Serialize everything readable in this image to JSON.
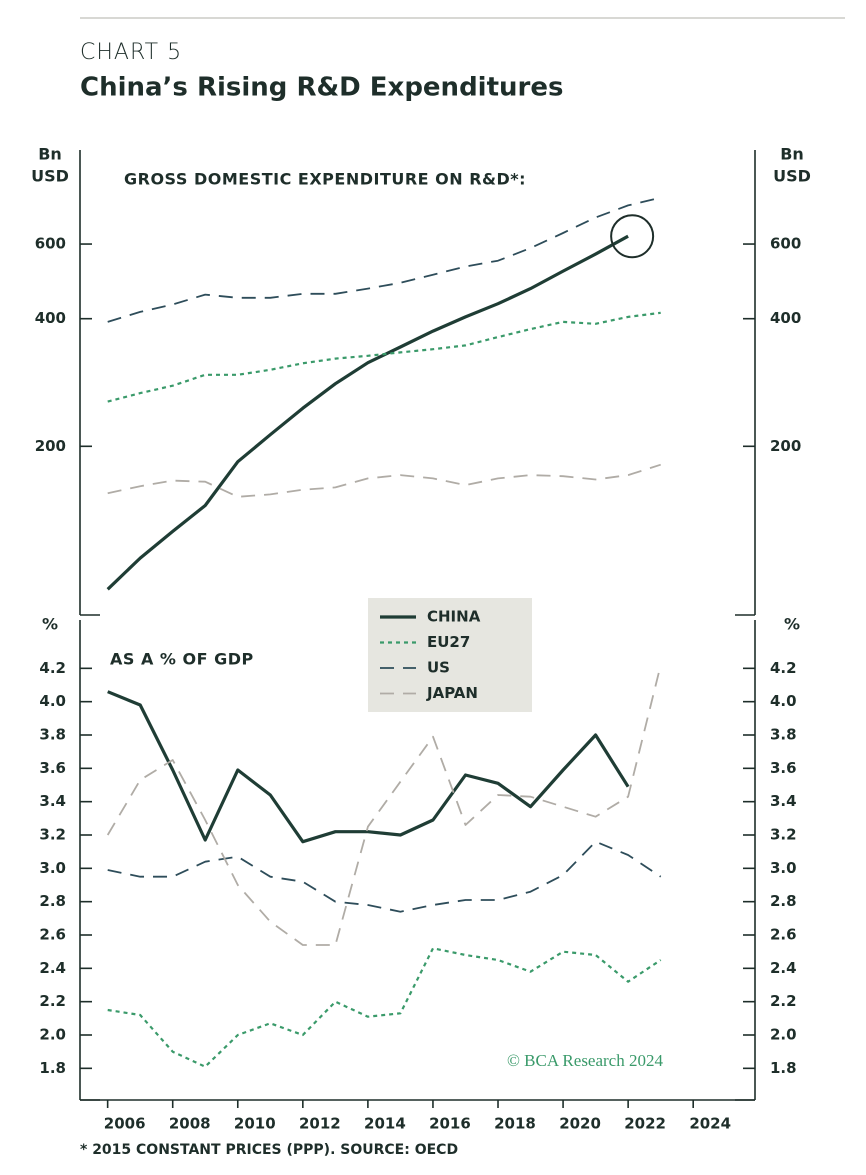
{
  "header": {
    "label": "CHART 5",
    "title": "China’s Rising R&D Expenditures"
  },
  "chart_data": [
    {
      "type": "line",
      "subtitle": "GROSS DOMESTIC EXPENDITURE ON R&D*:",
      "y_label": [
        "Bn",
        "USD"
      ],
      "log_y": true,
      "x": [
        2006,
        2007,
        2008,
        2009,
        2010,
        2011,
        2012,
        2013,
        2014,
        2015,
        2016,
        2017,
        2018,
        2019,
        2020,
        2021,
        2022,
        2023
      ],
      "xlim": [
        2005.15,
        2025.9
      ],
      "ylim": [
        80,
        1000
      ],
      "yticks": [
        200,
        400,
        600
      ],
      "series": [
        {
          "name": "CHINA",
          "color": "#1f3d35",
          "style": "solid",
          "values": [
            92,
            109,
            126,
            145,
            184,
            213,
            246,
            281,
            315,
            343,
            374,
            404,
            434,
            471,
            518,
            568,
            626,
            null
          ]
        },
        {
          "name": "EU27",
          "color": "#3a9a6a",
          "style": "dotted",
          "values": [
            255,
            267,
            278,
            295,
            295,
            303,
            314,
            322,
            327,
            333,
            339,
            346,
            362,
            378,
            393,
            389,
            404,
            413
          ]
        },
        {
          "name": "US",
          "color": "#2e4d5a",
          "style": "dashed",
          "values": [
            393,
            415,
            432,
            456,
            448,
            448,
            458,
            458,
            471,
            486,
            508,
            531,
            548,
            587,
            637,
            693,
            740,
            772
          ]
        },
        {
          "name": "JAPAN",
          "color": "#b0aca6",
          "style": "dashed",
          "values": [
            155,
            161,
            166,
            165,
            152,
            154,
            158,
            160,
            168,
            171,
            168,
            162,
            168,
            171,
            170,
            167,
            171,
            181
          ]
        }
      ]
    },
    {
      "type": "line",
      "subtitle": "AS A % OF GDP",
      "y_label": [
        "%"
      ],
      "x": [
        2006,
        2007,
        2008,
        2009,
        2010,
        2011,
        2012,
        2013,
        2014,
        2015,
        2016,
        2017,
        2018,
        2019,
        2020,
        2021,
        2022,
        2023
      ],
      "xlim": [
        2005.15,
        2025.9
      ],
      "xticks": [
        2006,
        2008,
        2010,
        2012,
        2014,
        2016,
        2018,
        2020,
        2022,
        2024
      ],
      "ylim": [
        1.61,
        4.49
      ],
      "yticks": [
        1.8,
        {
          "value": 2,
          "label": "2.0"
        },
        2.2,
        2.4,
        2.6,
        2.8,
        {
          "value": 3,
          "label": "3.0"
        },
        3.2,
        3.4,
        3.6,
        3.8,
        {
          "value": 4,
          "label": "4.0"
        },
        4.2
      ],
      "series": [
        {
          "color": "#1f3d35",
          "style": "solid",
          "values": [
            4.06,
            3.98,
            3.59,
            3.17,
            3.59,
            3.44,
            3.16,
            3.22,
            3.22,
            3.2,
            3.29,
            3.56,
            3.51,
            3.37,
            3.59,
            3.8,
            3.49,
            null
          ]
        },
        {
          "color": "#3a9a6a",
          "style": "dotted",
          "values": [
            2.15,
            2.12,
            1.9,
            1.81,
            2.0,
            2.07,
            2.0,
            2.2,
            2.11,
            2.13,
            2.52,
            2.48,
            2.45,
            2.38,
            2.5,
            2.48,
            2.32,
            2.45
          ]
        },
        {
          "color": "#2e4d5a",
          "style": "dashed",
          "values": [
            2.99,
            2.95,
            2.95,
            3.04,
            3.07,
            2.95,
            2.92,
            2.8,
            2.78,
            2.74,
            2.78,
            2.81,
            2.81,
            2.86,
            2.96,
            3.16,
            3.08,
            2.95
          ]
        },
        {
          "color": "#b0aca6",
          "style": "dashed",
          "values": [
            3.2,
            3.53,
            3.65,
            3.29,
            2.9,
            2.68,
            2.54,
            2.54,
            3.25,
            3.52,
            3.79,
            3.26,
            3.44,
            3.43,
            3.37,
            3.31,
            3.43,
            4.22
          ]
        }
      ]
    }
  ],
  "watermark": "© BCA Research 2024",
  "footnote": "* 2015 CONSTANT PRICES (PPP). SOURCE: OECD"
}
